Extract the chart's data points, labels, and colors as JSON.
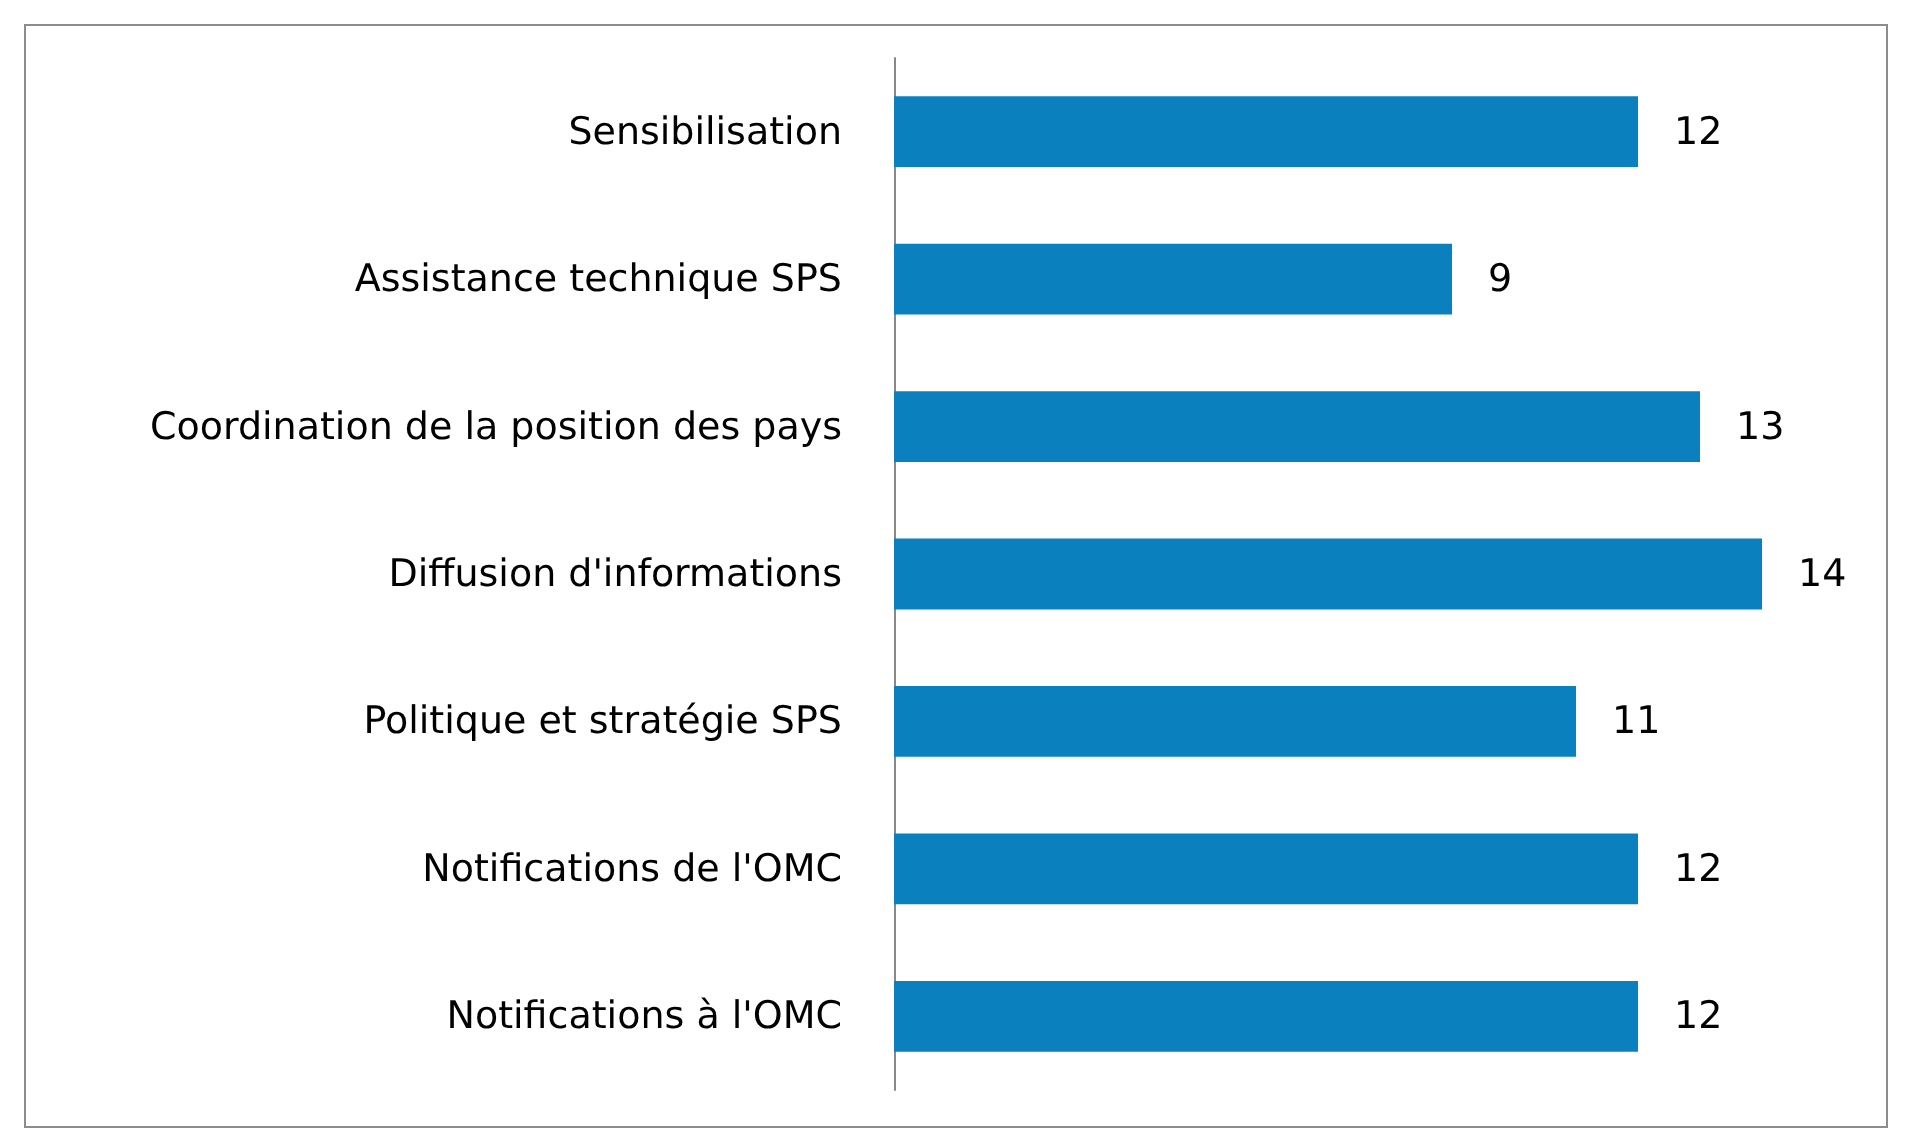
{
  "chart_data": {
    "type": "bar",
    "orientation": "horizontal",
    "categories": [
      "Sensibilisation",
      "Assistance technique SPS",
      "Coordination de la position des pays",
      "Diffusion d'informations",
      "Politique et stratégie SPS",
      "Notifications de l'OMC",
      "Notifications à l'OMC"
    ],
    "values": [
      12,
      9,
      13,
      14,
      11,
      12,
      12
    ],
    "color": "#0a80bf",
    "xlim": [
      0,
      16
    ],
    "data_labels": true,
    "tick_labels": "y"
  }
}
